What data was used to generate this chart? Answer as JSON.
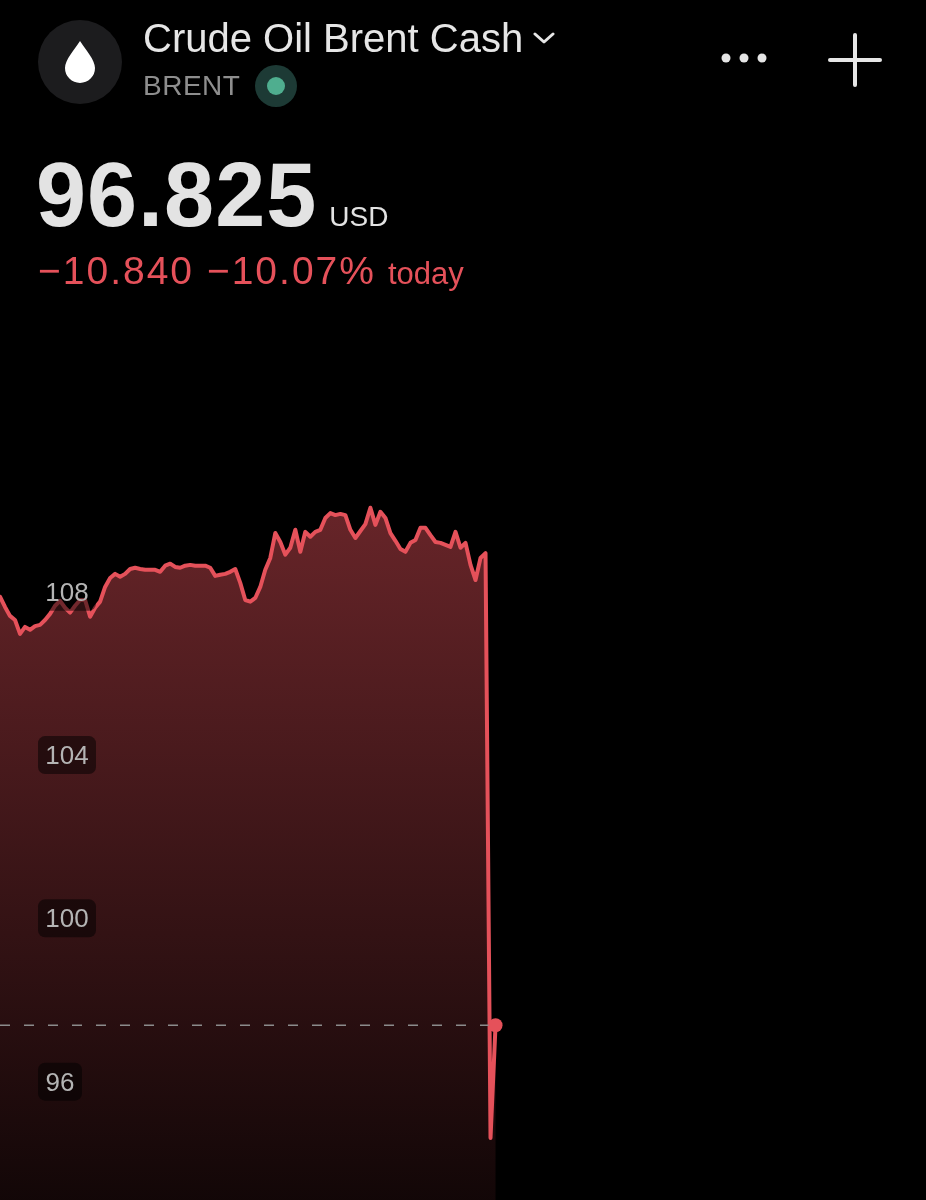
{
  "chart_data": {
    "type": "area",
    "title": "Crude Oil Brent Cash",
    "subtitle": "BRENT",
    "annotations": [
      "96.825",
      "USD",
      "−10.840 −10.07%",
      "today"
    ],
    "categories": [
      null,
      null,
      null,
      null,
      null,
      null,
      null,
      null,
      null,
      null,
      null,
      null,
      null,
      null,
      null,
      null,
      null,
      null,
      null,
      null,
      null,
      null,
      null,
      null,
      null,
      null,
      null,
      null,
      null,
      null,
      null,
      null,
      null,
      null,
      null,
      null,
      null,
      null,
      null,
      null,
      null,
      null,
      null,
      null,
      null,
      null,
      null,
      null,
      null,
      null,
      null,
      null,
      null,
      null,
      null,
      null,
      null,
      null,
      null,
      null,
      null,
      null,
      null,
      null,
      null,
      null,
      null,
      null,
      null,
      null,
      null,
      null,
      null,
      null,
      null,
      null,
      null,
      null,
      null,
      null,
      null,
      null,
      null,
      null,
      null,
      null,
      null,
      null,
      null,
      null,
      null,
      null,
      null,
      null,
      null,
      null,
      null,
      null,
      null,
      null,
      null,
      null,
      null,
      null,
      null,
      null,
      null,
      null,
      null,
      null,
      null,
      null,
      null,
      null,
      null,
      null,
      null,
      null,
      null,
      null,
      null,
      null,
      null,
      null,
      null,
      null,
      null,
      null,
      null,
      null,
      null,
      null,
      null,
      null,
      null,
      null,
      null,
      null,
      null,
      null,
      null,
      null,
      null,
      null,
      null,
      null,
      null,
      null,
      null,
      null,
      null,
      null,
      null,
      null,
      null,
      null,
      null,
      null,
      null,
      null,
      null,
      null,
      null,
      null,
      null,
      null,
      null,
      null,
      null,
      null,
      null,
      null,
      null,
      null,
      null,
      null,
      null,
      null,
      null,
      null,
      null,
      null,
      null,
      null,
      null,
      null
    ],
    "values": [
      107.88,
      107.63,
      107.41,
      107.31,
      106.97,
      107.14,
      107.07,
      107.16,
      107.19,
      107.31,
      107.46,
      107.66,
      107.78,
      107.61,
      107.49,
      107.66,
      107.8,
      107.8,
      107.39,
      107.61,
      107.76,
      108.12,
      108.34,
      108.44,
      108.37,
      108.44,
      108.56,
      108.59,
      108.56,
      108.54,
      108.54,
      108.54,
      108.49,
      108.64,
      108.69,
      108.61,
      108.59,
      108.64,
      108.66,
      108.64,
      108.64,
      108.64,
      108.59,
      108.39,
      108.42,
      108.44,
      108.49,
      108.56,
      108.22,
      107.8,
      107.76,
      107.85,
      108.12,
      108.54,
      108.83,
      109.44,
      109.22,
      108.91,
      109.08,
      109.52,
      108.98,
      109.47,
      109.35,
      109.47,
      109.52,
      109.81,
      109.93,
      109.88,
      109.91,
      109.88,
      109.52,
      109.32,
      109.49,
      109.66,
      110.06,
      109.64,
      109.96,
      109.81,
      109.44,
      109.25,
      109.05,
      108.98,
      109.2,
      109.27,
      109.57,
      109.57,
      109.39,
      109.22,
      109.2,
      109.15,
      109.1,
      109.47,
      109.08,
      109.2,
      108.66,
      108.29,
      108.83,
      108.95,
      94.62,
      97.38,
      null,
      null,
      null,
      null,
      null,
      null,
      null,
      null,
      null,
      null,
      null,
      null,
      null,
      null,
      null,
      null,
      null,
      null,
      null,
      null,
      null,
      null,
      null,
      null,
      null,
      null,
      null,
      null,
      null,
      null,
      null,
      null,
      null,
      null,
      null,
      null,
      null,
      null,
      null,
      null,
      null,
      null,
      null,
      null,
      null,
      null,
      null,
      null,
      null,
      null,
      null,
      null,
      null,
      null,
      null,
      null,
      null,
      null,
      null,
      null,
      null,
      null,
      null,
      null,
      null,
      null,
      null,
      null,
      null,
      null,
      null,
      null,
      null,
      null,
      null,
      null,
      null,
      null,
      null,
      null,
      null,
      null,
      null,
      null,
      null,
      null
    ],
    "color": "#e5515a",
    "ylim": [
      93.1,
      122.5
    ],
    "yticks": [
      96,
      100,
      104,
      108
    ],
    "tick_labels": "y",
    "ref_lines": [
      {
        "axis": "y",
        "value": 97.38,
        "color": "#8c8c8c",
        "line_style": "dashed"
      }
    ]
  }
}
